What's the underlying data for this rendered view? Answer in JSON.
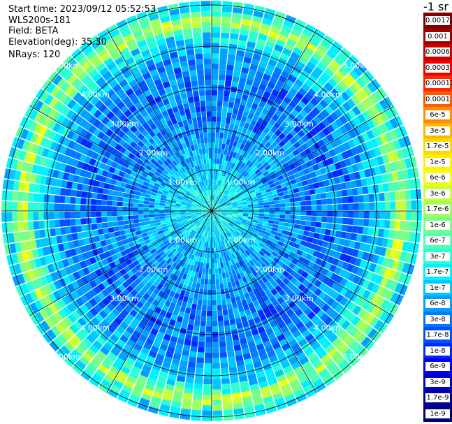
{
  "header": {
    "start_time": "Start time: 2023/09/12 05:52:53",
    "instrument": "WLS200s-181",
    "field": "Field: BETA",
    "elevation": "Elevation(deg): 35.30",
    "nrays": "NRays: 120"
  },
  "colorbar": {
    "unit": "-1 sr",
    "labels": [
      "0.0017",
      "0.001",
      "0.0006",
      "0.0003",
      "0.00017",
      "0.0001",
      "6e-5",
      "3e-5",
      "1.7e-5",
      "1e-5",
      "6e-6",
      "3e-6",
      "1.7e-6",
      "1e-6",
      "6e-7",
      "3e-7",
      "1.7e-7",
      "1e-7",
      "6e-8",
      "3e-8",
      "1.7e-8",
      "1e-8",
      "6e-9",
      "3e-9",
      "1.7e-9",
      "1e-9"
    ],
    "colors": [
      "#7f0000",
      "#a00000",
      "#c80000",
      "#ee0000",
      "#ff2800",
      "#ff5a00",
      "#ff8c00",
      "#ffb400",
      "#ffd800",
      "#fff000",
      "#f0ff10",
      "#c8ff37",
      "#a0ff5f",
      "#78ff87",
      "#50ffaf",
      "#28ffd7",
      "#00f0ff",
      "#00c8ff",
      "#00a0ff",
      "#0078ff",
      "#0050ff",
      "#0028ff",
      "#0000f0",
      "#0000c8",
      "#0000a0",
      "#00007a"
    ]
  },
  "chart_data": {
    "type": "heatmap",
    "projection": "polar PPI",
    "field": "BETA",
    "elevation_deg": 35.3,
    "n_rays": 120,
    "range_rings_km": [
      1,
      2,
      3,
      4,
      5
    ],
    "range_ring_labels": [
      "1.00km",
      "2.00km",
      "3.00km",
      "4.00km",
      "5.00km"
    ],
    "max_range_km": 5.1,
    "colormap_levels": [
      "1e-9",
      "1.7e-9",
      "3e-9",
      "6e-9",
      "1e-8",
      "1.7e-8",
      "3e-8",
      "6e-8",
      "1e-7",
      "1.7e-7",
      "3e-7",
      "6e-7",
      "1e-6",
      "1.7e-6",
      "3e-6",
      "6e-6",
      "1e-5",
      "1.7e-5",
      "3e-5",
      "6e-5",
      "0.0001",
      "0.00017",
      "0.0003",
      "0.0006",
      "0.001",
      "0.0017"
    ],
    "radial_profile": [
      {
        "range_km": 0.5,
        "level_index": 9
      },
      {
        "range_km": 1.5,
        "level_index": 7
      },
      {
        "range_km": 2.5,
        "level_index": 6
      },
      {
        "range_km": 3.5,
        "level_index": 6
      },
      {
        "range_km": 4.3,
        "level_index": 9
      },
      {
        "range_km": 4.6,
        "level_index": 14
      },
      {
        "range_km": 4.9,
        "level_index": 9
      }
    ]
  }
}
